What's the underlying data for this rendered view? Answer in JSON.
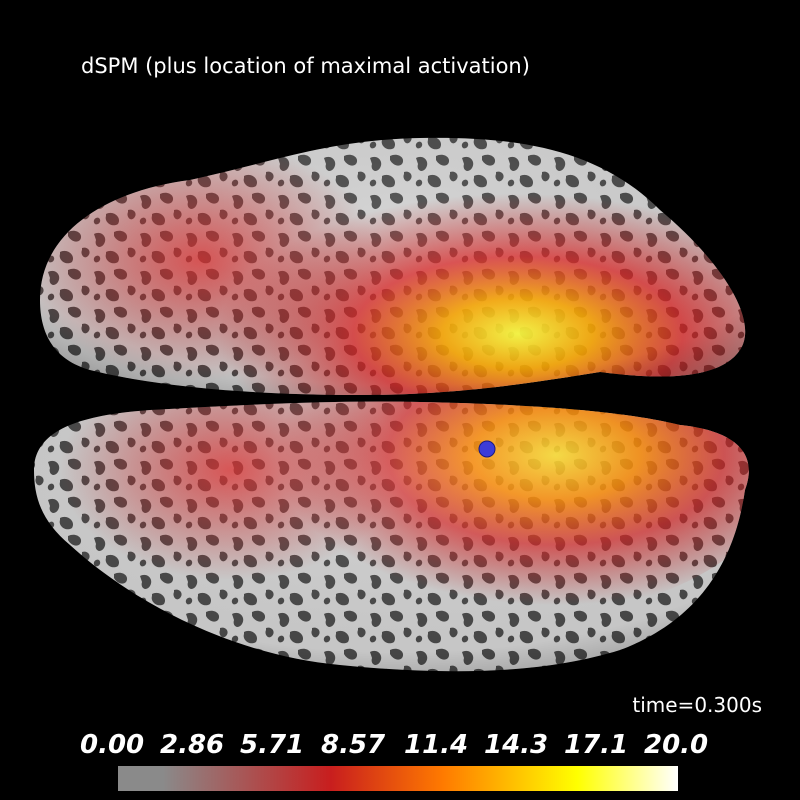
{
  "title": "dSPM (plus location of maximal activation)",
  "time_readout": "time=0.300s",
  "colorbar": {
    "ticks": [
      "0.00",
      "2.86",
      "5.71",
      "8.57",
      "11.4",
      "14.3",
      "17.1",
      "20.0"
    ],
    "colors": {
      "low": "#8a8a8a",
      "mid": "#c81e1e",
      "orange": "#ff7a00",
      "yellow": "#ffff00",
      "high": "#ffffff"
    }
  },
  "scene": {
    "surface_colors": {
      "gyri": "#d0d0d0",
      "sulci": "#4a4a4a"
    },
    "marker_color": "#3c3cd8"
  }
}
